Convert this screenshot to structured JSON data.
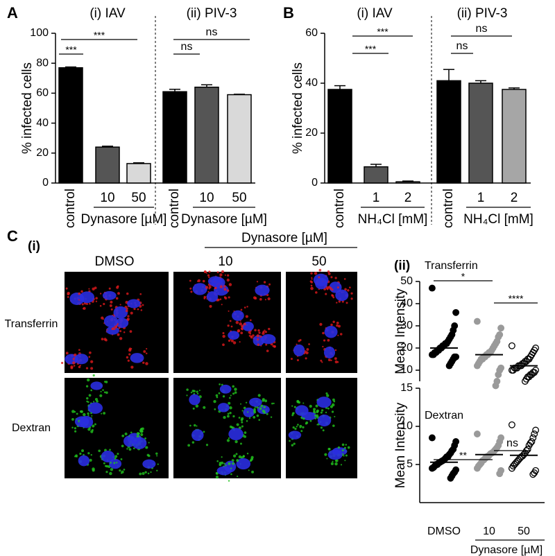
{
  "chart_data": [
    {
      "type": "bar",
      "panel": "A",
      "group_titles": [
        "(i) IAV",
        "(ii) PIV-3"
      ],
      "ylabel": "% infected cells",
      "ylim": [
        0,
        100
      ],
      "yticks": [
        0,
        20,
        40,
        60,
        80,
        100
      ],
      "categories": [
        "control",
        "10",
        "50",
        "control",
        "10",
        "50"
      ],
      "values": [
        77,
        24,
        13,
        61,
        64,
        59
      ],
      "errors": [
        0.5,
        0.6,
        0.5,
        1.6,
        1.6,
        0.3
      ],
      "colors": [
        "#000000",
        "#555555",
        "#d9d9d9",
        "#000000",
        "#555555",
        "#d9d9d9"
      ],
      "group_labels": [
        "Dynasore [µM]",
        "Dynasore [µM]"
      ],
      "annotations": [
        "***",
        "***",
        "ns",
        "ns"
      ]
    },
    {
      "type": "bar",
      "panel": "B",
      "group_titles": [
        "(i) IAV",
        "(ii) PIV-3"
      ],
      "ylabel": "% infected cells",
      "ylim": [
        0,
        60
      ],
      "yticks": [
        0,
        20,
        40,
        60
      ],
      "categories": [
        "control",
        "1",
        "2",
        "control",
        "1",
        "2"
      ],
      "values": [
        37.5,
        6.5,
        0.5,
        41,
        40,
        37.5
      ],
      "errors": [
        1.5,
        1,
        0.3,
        4.5,
        1,
        0.6
      ],
      "colors": [
        "#000000",
        "#555555",
        "#a6a6a6",
        "#000000",
        "#555555",
        "#a6a6a6"
      ],
      "group_labels": [
        "NH₄Cl [mM]",
        "NH₄Cl [mM]"
      ],
      "annotations": [
        "***",
        "***",
        "ns",
        "ns"
      ]
    },
    {
      "type": "strip",
      "title": "Transferrin",
      "ylabel": "Mean Intensity",
      "ylim": [
        5,
        50
      ],
      "yticks": [
        10,
        20,
        30,
        40,
        50
      ],
      "groups": [
        {
          "color": "#000000",
          "hollow": false,
          "mean": 20,
          "values": [
            47,
            36,
            30,
            28,
            26,
            25,
            24,
            23,
            22,
            22,
            21,
            21,
            20,
            20,
            19,
            19,
            18,
            18,
            17,
            17,
            16,
            16,
            15,
            14,
            13,
            12
          ]
        },
        {
          "color": "#9a9a9a",
          "hollow": false,
          "mean": 17,
          "values": [
            32,
            29,
            26,
            25,
            23,
            22,
            21,
            20,
            19,
            18,
            18,
            17,
            17,
            16,
            16,
            15,
            15,
            14,
            13,
            12,
            11,
            10,
            8,
            5,
            3
          ]
        },
        {
          "color": "#000000",
          "hollow": true,
          "mean": 12,
          "values": [
            21,
            20,
            19,
            18,
            17,
            16,
            15,
            15,
            14,
            14,
            13,
            13,
            12,
            12,
            12,
            11,
            11,
            11,
            10,
            10,
            10,
            9,
            9,
            8,
            8,
            7,
            7,
            6,
            5
          ]
        }
      ],
      "annotations": [
        "*",
        "****"
      ]
    },
    {
      "type": "strip",
      "title": "Dextran",
      "ylabel": "Mean Intensity",
      "ylim": [
        0,
        15
      ],
      "yticks": [
        5,
        10,
        15
      ],
      "categories": [
        "DMSO",
        "10",
        "50"
      ],
      "group_label": "Dynasore [µM]",
      "groups": [
        {
          "color": "#000000",
          "hollow": false,
          "mean": 5.3,
          "values": [
            8.5,
            8,
            7.5,
            7,
            6.8,
            6.5,
            6.3,
            6,
            6,
            5.8,
            5.6,
            5.5,
            5.4,
            5.3,
            5.2,
            5,
            5,
            4.8,
            4.6,
            4.5,
            4.3,
            4,
            3.8,
            3.5,
            3.2
          ]
        },
        {
          "color": "#9a9a9a",
          "hollow": false,
          "mean": 6.3,
          "values": [
            9,
            8.5,
            8,
            7.5,
            7.2,
            7,
            6.8,
            6.6,
            6.5,
            6.4,
            6.2,
            6,
            6,
            5.8,
            5.6,
            5.5,
            5.2,
            5,
            4.8,
            4.5,
            4.2,
            3.8
          ]
        },
        {
          "color": "#000000",
          "hollow": true,
          "mean": 6.2,
          "values": [
            10.2,
            9.5,
            9,
            8.5,
            8,
            7.8,
            7.5,
            7,
            6.8,
            6.5,
            6.3,
            6.1,
            6,
            5.8,
            5.6,
            5.4,
            5.2,
            5,
            4.8,
            4.5,
            4.2,
            3.9,
            3.7
          ]
        }
      ],
      "annotations": [
        "**",
        "ns"
      ]
    }
  ],
  "panel_c": {
    "label": "C",
    "subpanel_i": "(i)",
    "subpanel_ii": "(ii)",
    "treatment": "Dynasore [µM]",
    "columns": [
      "DMSO",
      "10",
      "50"
    ],
    "rows": [
      "Transferrin",
      "Dextran"
    ]
  }
}
